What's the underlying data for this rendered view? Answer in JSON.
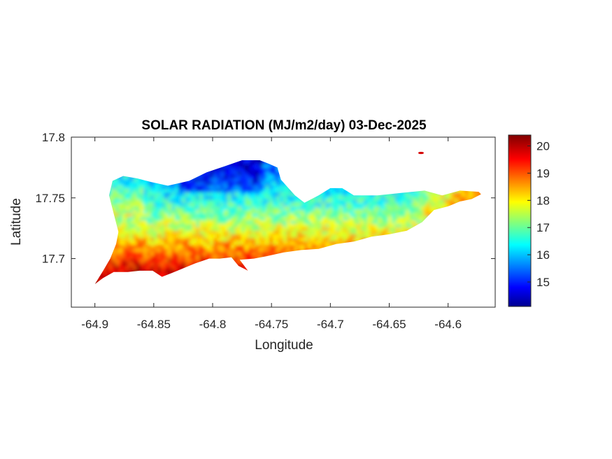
{
  "chart_data": {
    "type": "heatmap",
    "title": "SOLAR RADIATION (MJ/m2/day) 03-Dec-2025",
    "xlabel": "Longitude",
    "ylabel": "Latitude",
    "xlim": [
      -64.92,
      -64.56
    ],
    "ylim": [
      17.66,
      17.8
    ],
    "xticks": [
      -64.9,
      -64.85,
      -64.8,
      -64.75,
      -64.7,
      -64.65,
      -64.6
    ],
    "xtick_labels": [
      "-64.9",
      "-64.85",
      "-64.8",
      "-64.75",
      "-64.7",
      "-64.65",
      "-64.6"
    ],
    "yticks": [
      17.7,
      17.75,
      17.8
    ],
    "ytick_labels": [
      "17.7",
      "17.75",
      "17.8"
    ],
    "colormap": "jet",
    "clim": [
      14.1,
      20.4
    ],
    "colorbar_ticks": [
      15,
      16,
      17,
      18,
      19,
      20
    ],
    "colorbar_labels": [
      "15",
      "16",
      "17",
      "18",
      "19",
      "20"
    ],
    "grid": false,
    "value_bands": [
      {
        "lat": 17.775,
        "mean": 15.5
      },
      {
        "lat": 17.76,
        "mean": 16.2
      },
      {
        "lat": 17.745,
        "mean": 16.8
      },
      {
        "lat": 17.73,
        "mean": 17.6
      },
      {
        "lat": 17.715,
        "mean": 18.4
      },
      {
        "lat": 17.7,
        "mean": 19.4
      },
      {
        "lat": 17.69,
        "mean": 20.0
      }
    ],
    "island_outline": [
      [
        -64.9,
        17.679
      ],
      [
        -64.893,
        17.684
      ],
      [
        -64.884,
        17.689
      ],
      [
        -64.872,
        17.689
      ],
      [
        -64.862,
        17.69
      ],
      [
        -64.851,
        17.69
      ],
      [
        -64.843,
        17.685
      ],
      [
        -64.835,
        17.688
      ],
      [
        -64.825,
        17.692
      ],
      [
        -64.815,
        17.696
      ],
      [
        -64.803,
        17.7
      ],
      [
        -64.794,
        17.7
      ],
      [
        -64.784,
        17.701
      ],
      [
        -64.778,
        17.694
      ],
      [
        -64.77,
        17.69
      ],
      [
        -64.777,
        17.699
      ],
      [
        -64.765,
        17.7
      ],
      [
        -64.754,
        17.702
      ],
      [
        -64.74,
        17.705
      ],
      [
        -64.725,
        17.707
      ],
      [
        -64.71,
        17.708
      ],
      [
        -64.695,
        17.712
      ],
      [
        -64.68,
        17.714
      ],
      [
        -64.665,
        17.718
      ],
      [
        -64.65,
        17.72
      ],
      [
        -64.635,
        17.723
      ],
      [
        -64.622,
        17.73
      ],
      [
        -64.612,
        17.74
      ],
      [
        -64.6,
        17.743
      ],
      [
        -64.59,
        17.747
      ],
      [
        -64.58,
        17.749
      ],
      [
        -64.572,
        17.753
      ],
      [
        -64.574,
        17.755
      ],
      [
        -64.59,
        17.756
      ],
      [
        -64.605,
        17.752
      ],
      [
        -64.62,
        17.756
      ],
      [
        -64.64,
        17.754
      ],
      [
        -64.66,
        17.752
      ],
      [
        -64.68,
        17.752
      ],
      [
        -64.69,
        17.758
      ],
      [
        -64.7,
        17.758
      ],
      [
        -64.71,
        17.752
      ],
      [
        -64.722,
        17.746
      ],
      [
        -64.73,
        17.752
      ],
      [
        -64.742,
        17.765
      ],
      [
        -64.745,
        17.775
      ],
      [
        -64.752,
        17.778
      ],
      [
        -64.76,
        17.781
      ],
      [
        -64.775,
        17.781
      ],
      [
        -64.79,
        17.776
      ],
      [
        -64.805,
        17.771
      ],
      [
        -64.82,
        17.764
      ],
      [
        -64.838,
        17.76
      ],
      [
        -64.852,
        17.763
      ],
      [
        -64.864,
        17.766
      ],
      [
        -64.876,
        17.768
      ],
      [
        -64.885,
        17.764
      ],
      [
        -64.888,
        17.752
      ],
      [
        -64.884,
        17.737
      ],
      [
        -64.88,
        17.722
      ],
      [
        -64.882,
        17.712
      ],
      [
        -64.887,
        17.7
      ],
      [
        -64.893,
        17.69
      ],
      [
        -64.9,
        17.679
      ]
    ],
    "islet": [
      -64.623,
      17.787
    ]
  }
}
